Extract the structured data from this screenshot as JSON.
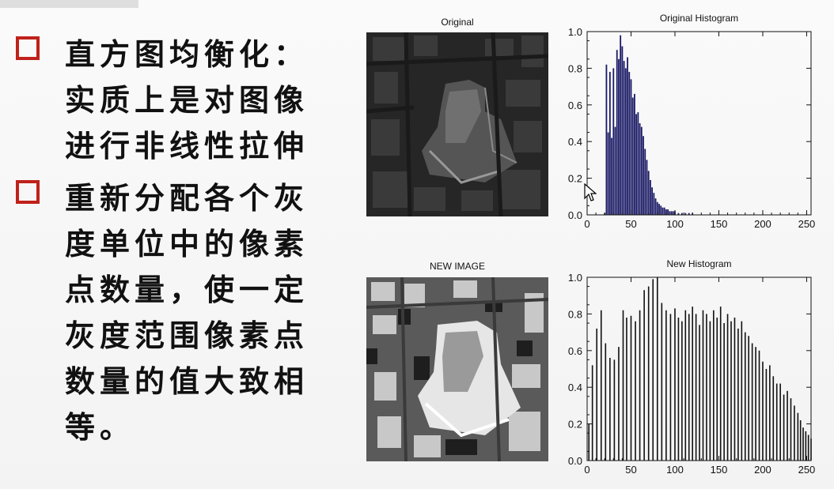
{
  "slide": {
    "bullets": [
      {
        "text": "直方图均衡化：\n实质上是对图像\n进行非线性拉伸"
      },
      {
        "text": "重新分配各个灰\n度单位中的像素\n点数量，使一定\n灰度范围像素点\n数量的值大致相\n等。"
      }
    ],
    "bullet_color": "#c0211a"
  },
  "figure": {
    "original_title": "Original",
    "new_image_title": "NEW IMAGE",
    "original_histogram_title": "Original Histogram",
    "new_histogram_title": "New Histogram"
  },
  "chart_data": [
    {
      "type": "bar",
      "title": "Original Histogram",
      "xlim": [
        0,
        255
      ],
      "ylim": [
        0,
        1.0
      ],
      "xticks": [
        0,
        50,
        100,
        150,
        200,
        250
      ],
      "yticks": [
        "0.0",
        "0.2",
        "0.4",
        "0.6",
        "0.8",
        "1.0"
      ],
      "x": [
        20,
        22,
        24,
        26,
        28,
        30,
        32,
        34,
        36,
        38,
        40,
        42,
        44,
        46,
        48,
        50,
        52,
        54,
        56,
        58,
        60,
        62,
        64,
        66,
        68,
        70,
        72,
        74,
        76,
        78,
        80,
        82,
        84,
        86,
        88,
        90,
        92,
        94,
        96,
        98,
        100,
        104,
        108,
        112,
        116,
        120
      ],
      "values": [
        0.01,
        0.82,
        0.45,
        0.78,
        0.42,
        0.8,
        0.48,
        0.9,
        0.85,
        0.98,
        0.92,
        0.84,
        0.8,
        0.86,
        0.78,
        0.74,
        0.64,
        0.66,
        0.55,
        0.56,
        0.5,
        0.48,
        0.43,
        0.36,
        0.3,
        0.24,
        0.19,
        0.15,
        0.12,
        0.09,
        0.07,
        0.06,
        0.05,
        0.04,
        0.04,
        0.03,
        0.03,
        0.02,
        0.02,
        0.02,
        0.02,
        0.01,
        0.01,
        0.01,
        0.01,
        0.01
      ],
      "bar_color": "#1a1a66",
      "grid": false
    },
    {
      "type": "bar",
      "title": "New Histogram",
      "xlim": [
        0,
        255
      ],
      "ylim": [
        0,
        1.0
      ],
      "xticks": [
        0,
        50,
        100,
        150,
        200,
        250
      ],
      "yticks": [
        "0.0",
        "0.2",
        "0.4",
        "0.6",
        "0.8",
        "1.0"
      ],
      "x": [
        2,
        6,
        11,
        16,
        21,
        26,
        31,
        36,
        41,
        45,
        50,
        55,
        60,
        65,
        70,
        75,
        80,
        85,
        90,
        95,
        100,
        104,
        108,
        112,
        116,
        120,
        124,
        128,
        132,
        136,
        140,
        144,
        148,
        152,
        156,
        160,
        164,
        168,
        172,
        176,
        180,
        184,
        188,
        192,
        196,
        200,
        204,
        208,
        212,
        216,
        220,
        224,
        228,
        232,
        236,
        240,
        243,
        246,
        249,
        252,
        255
      ],
      "values": [
        0.2,
        0.52,
        0.72,
        0.82,
        0.64,
        0.56,
        0.55,
        0.62,
        0.82,
        0.78,
        0.79,
        0.76,
        0.82,
        0.93,
        0.95,
        0.99,
        1.0,
        0.86,
        0.82,
        0.8,
        0.83,
        0.78,
        0.76,
        0.82,
        0.8,
        0.84,
        0.8,
        0.74,
        0.82,
        0.8,
        0.76,
        0.82,
        0.78,
        0.84,
        0.75,
        0.8,
        0.76,
        0.78,
        0.72,
        0.76,
        0.7,
        0.68,
        0.64,
        0.62,
        0.6,
        0.54,
        0.5,
        0.52,
        0.46,
        0.42,
        0.42,
        0.36,
        0.38,
        0.34,
        0.3,
        0.26,
        0.22,
        0.18,
        0.16,
        0.14,
        0.12
      ],
      "bar_color": "#111111",
      "grid": false
    }
  ]
}
